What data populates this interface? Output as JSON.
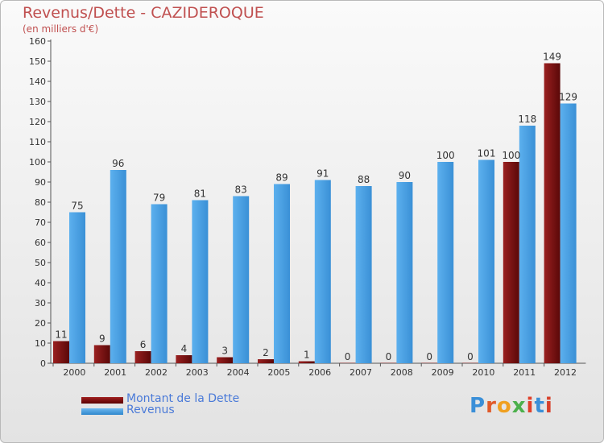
{
  "header": {
    "title": "Revenus/Dette - CAZIDEROQUE",
    "subtitle": "(en milliers d'€)"
  },
  "legend": {
    "debt_label": "Montant de la Dette",
    "revenue_label": "Revenus"
  },
  "logo": {
    "text": "Proxiti"
  },
  "colors": {
    "debt": "#7a1414",
    "revenue": "#4ea6e8",
    "title": "#c05050",
    "legend_text": "#4a7ad8"
  },
  "chart_data": {
    "type": "bar",
    "title": "Revenus/Dette - CAZIDEROQUE",
    "ylabel": "(en milliers d'€)",
    "xlabel": "",
    "categories": [
      "2000",
      "2001",
      "2002",
      "2003",
      "2004",
      "2005",
      "2006",
      "2007",
      "2008",
      "2009",
      "2010",
      "2011",
      "2012"
    ],
    "series": [
      {
        "name": "Montant de la Dette",
        "values": [
          11,
          9,
          6,
          4,
          3,
          2,
          1,
          0,
          0,
          0,
          0,
          100,
          149
        ]
      },
      {
        "name": "Revenus",
        "values": [
          75,
          96,
          79,
          81,
          83,
          89,
          91,
          88,
          90,
          100,
          101,
          118,
          129
        ]
      }
    ],
    "ylim": [
      0,
      160
    ],
    "yticks": [
      0,
      10,
      20,
      30,
      40,
      50,
      60,
      70,
      80,
      90,
      100,
      110,
      120,
      130,
      140,
      150,
      160
    ],
    "grid": false,
    "legend_position": "bottom-left"
  }
}
